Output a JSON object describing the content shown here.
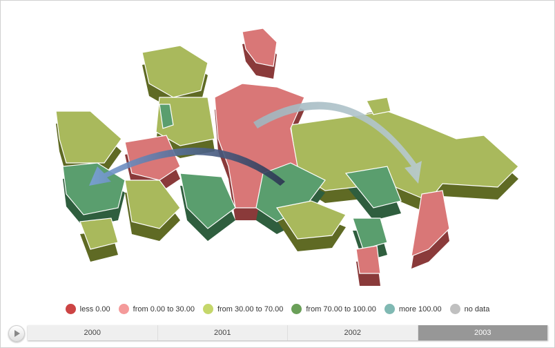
{
  "legend": [
    {
      "label": "less 0.00",
      "color": "#cc4444"
    },
    {
      "label": "from 0.00 to 30.00",
      "color": "#f49a9a"
    },
    {
      "label": "from 30.00 to 70.00",
      "color": "#c5d76b"
    },
    {
      "label": "from 70.00 to 100.00",
      "color": "#6a9f58"
    },
    {
      "label": "more 100.00",
      "color": "#80b9b3"
    },
    {
      "label": "no data",
      "color": "#c0c0c0"
    }
  ],
  "timeline": {
    "years": [
      "2000",
      "2001",
      "2002",
      "2003"
    ],
    "selected": "2003"
  },
  "map": {
    "region_colors": {
      "pink": "#d97777",
      "olive": "#a9b95c",
      "green": "#5a9e6e"
    }
  }
}
